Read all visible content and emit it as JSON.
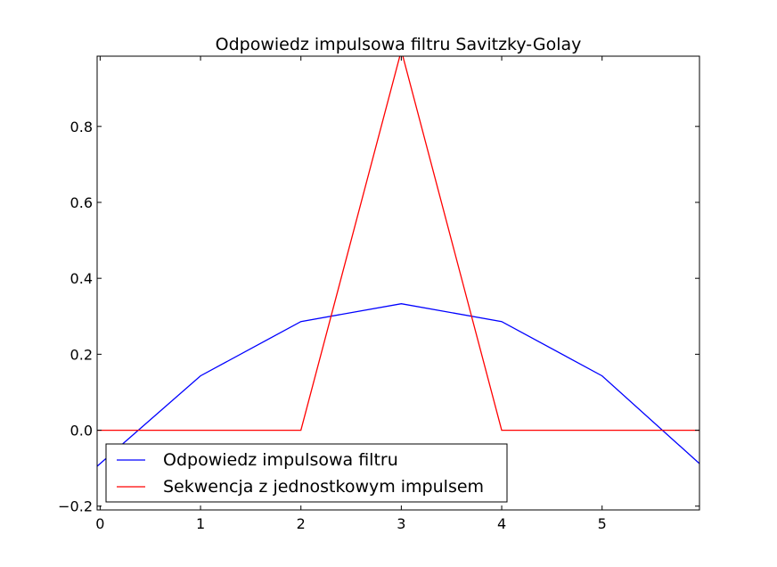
{
  "chart_data": {
    "type": "line",
    "title": "Odpowiedz impulsowa filtru Savitzky-Golay",
    "xlabel": "",
    "ylabel": "",
    "xlim": [
      -0.03,
      5.97
    ],
    "ylim": [
      -0.21,
      0.985
    ],
    "x_ticks": [
      0,
      1,
      2,
      3,
      4,
      5
    ],
    "x_tick_labels": [
      "0",
      "1",
      "2",
      "3",
      "4",
      "5"
    ],
    "y_ticks": [
      -0.2,
      0.0,
      0.2,
      0.4,
      0.6,
      0.8
    ],
    "y_tick_labels": [
      "−0.2",
      "0.0",
      "0.2",
      "0.4",
      "0.6",
      "0.8"
    ],
    "grid": false,
    "legend_position": "lower-left",
    "series": [
      {
        "name": "Odpowiedz impulsowa filtru",
        "color": "#0000ff",
        "x": [
          -0.03,
          1,
          2,
          3,
          4,
          5,
          5.97
        ],
        "y": [
          -0.095,
          0.143,
          0.286,
          0.333,
          0.286,
          0.143,
          -0.088
        ]
      },
      {
        "name": "Sekwencja z jednostkowym impulsem",
        "color": "#ff0000",
        "x": [
          -0.03,
          2,
          3,
          4,
          5.97
        ],
        "y": [
          0,
          0,
          1,
          0,
          0
        ]
      }
    ]
  }
}
